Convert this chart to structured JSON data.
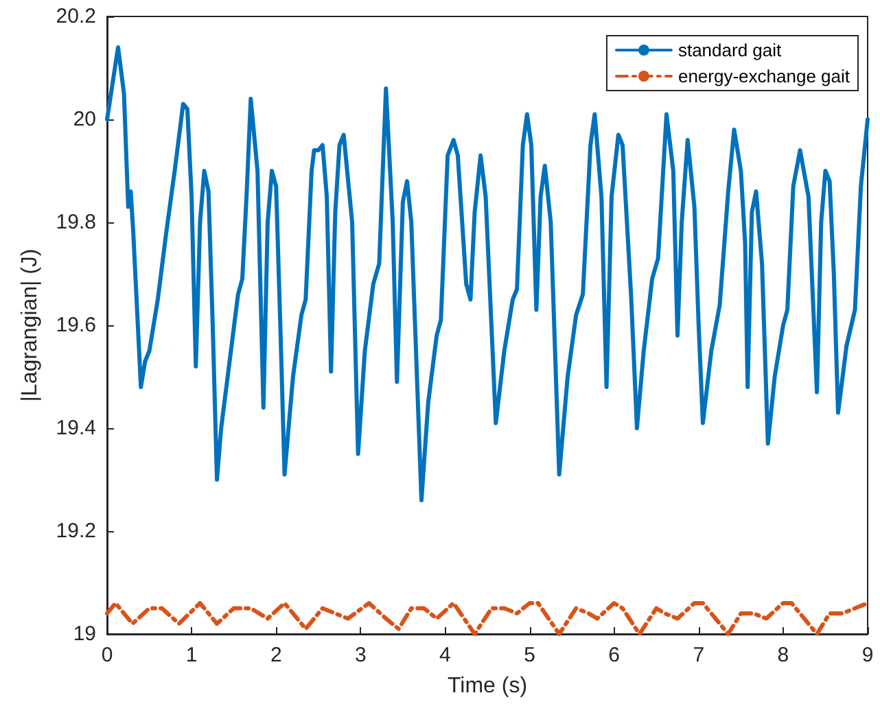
{
  "chart_data": {
    "type": "line",
    "xlabel": "Time (s)",
    "ylabel": "|Lagrangian| (J)",
    "xlim": [
      0,
      9
    ],
    "xticks": [
      0,
      1,
      2,
      3,
      4,
      5,
      6,
      7,
      8,
      9
    ],
    "ylim": [
      19,
      20.2
    ],
    "yticks": [
      19,
      19.2,
      19.4,
      19.6,
      19.8,
      20,
      20.2
    ],
    "grid": false,
    "legend": "top right",
    "marker": "none",
    "series": [
      {
        "name": "standard gait",
        "color": "#0072bd",
        "line_style": "solid",
        "x": [
          0,
          0.13,
          0.2,
          0.25,
          0.28,
          0.31,
          0.4,
          0.45,
          0.5,
          0.6,
          0.7,
          0.8,
          0.9,
          0.95,
          1.0,
          1.05,
          1.1,
          1.15,
          1.2,
          1.25,
          1.3,
          1.35,
          1.45,
          1.55,
          1.6,
          1.65,
          1.7,
          1.78,
          1.85,
          1.9,
          1.95,
          2.0,
          2.05,
          2.1,
          2.2,
          2.3,
          2.35,
          2.42,
          2.45,
          2.5,
          2.55,
          2.6,
          2.65,
          2.7,
          2.75,
          2.8,
          2.9,
          2.97,
          3.05,
          3.15,
          3.22,
          3.3,
          3.38,
          3.43,
          3.5,
          3.55,
          3.6,
          3.72,
          3.8,
          3.9,
          3.95,
          4.03,
          4.1,
          4.15,
          4.25,
          4.3,
          4.35,
          4.42,
          4.48,
          4.6,
          4.7,
          4.8,
          4.85,
          4.92,
          4.97,
          5.02,
          5.08,
          5.13,
          5.18,
          5.25,
          5.35,
          5.45,
          5.55,
          5.63,
          5.72,
          5.77,
          5.85,
          5.91,
          5.97,
          6.05,
          6.1,
          6.2,
          6.27,
          6.35,
          6.45,
          6.52,
          6.62,
          6.7,
          6.75,
          6.8,
          6.87,
          6.95,
          7.0,
          7.05,
          7.15,
          7.25,
          7.35,
          7.42,
          7.5,
          7.55,
          7.58,
          7.63,
          7.68,
          7.75,
          7.82,
          7.9,
          8.0,
          8.05,
          8.12,
          8.2,
          8.3,
          8.4,
          8.45,
          8.5,
          8.55,
          8.6,
          8.65,
          8.75,
          8.85,
          8.92,
          9.0
        ],
        "values": [
          20.0,
          20.14,
          20.05,
          19.83,
          19.86,
          19.78,
          19.48,
          19.53,
          19.55,
          19.65,
          19.78,
          19.9,
          20.03,
          20.02,
          19.85,
          19.52,
          19.8,
          19.9,
          19.86,
          19.6,
          19.3,
          19.4,
          19.53,
          19.66,
          19.69,
          19.85,
          20.04,
          19.9,
          19.44,
          19.8,
          19.9,
          19.87,
          19.6,
          19.31,
          19.5,
          19.62,
          19.65,
          19.9,
          19.94,
          19.94,
          19.95,
          19.85,
          19.51,
          19.82,
          19.95,
          19.97,
          19.8,
          19.35,
          19.55,
          19.68,
          19.72,
          20.06,
          19.8,
          19.49,
          19.84,
          19.88,
          19.8,
          19.26,
          19.45,
          19.58,
          19.61,
          19.93,
          19.96,
          19.93,
          19.68,
          19.65,
          19.82,
          19.93,
          19.85,
          19.41,
          19.55,
          19.65,
          19.67,
          19.95,
          20.01,
          19.95,
          19.63,
          19.85,
          19.91,
          19.8,
          19.31,
          19.5,
          19.62,
          19.66,
          19.95,
          20.01,
          19.85,
          19.48,
          19.85,
          19.97,
          19.95,
          19.66,
          19.4,
          19.55,
          19.69,
          19.73,
          20.01,
          19.9,
          19.58,
          19.8,
          19.96,
          19.83,
          19.6,
          19.41,
          19.55,
          19.64,
          19.86,
          19.98,
          19.9,
          19.76,
          19.48,
          19.82,
          19.86,
          19.72,
          19.37,
          19.5,
          19.6,
          19.63,
          19.87,
          19.94,
          19.85,
          19.47,
          19.8,
          19.9,
          19.88,
          19.7,
          19.43,
          19.56,
          19.63,
          19.87,
          20.0
        ]
      },
      {
        "name": "energy-exchange gait",
        "color": "#d95319",
        "line_style": "dashed",
        "x": [
          0,
          0.1,
          0.3,
          0.5,
          0.65,
          0.85,
          1.1,
          1.3,
          1.5,
          1.7,
          1.9,
          2.1,
          2.35,
          2.55,
          2.7,
          2.85,
          3.1,
          3.3,
          3.45,
          3.6,
          3.75,
          3.9,
          4.1,
          4.35,
          4.55,
          4.7,
          4.85,
          5.0,
          5.1,
          5.35,
          5.55,
          5.7,
          5.8,
          6.0,
          6.1,
          6.3,
          6.5,
          6.6,
          6.75,
          6.95,
          7.05,
          7.35,
          7.5,
          7.65,
          7.8,
          8.0,
          8.1,
          8.4,
          8.55,
          8.7,
          8.85,
          9.0
        ],
        "values": [
          19.04,
          19.06,
          19.02,
          19.05,
          19.05,
          19.02,
          19.06,
          19.02,
          19.05,
          19.05,
          19.03,
          19.06,
          19.01,
          19.05,
          19.04,
          19.03,
          19.06,
          19.03,
          19.01,
          19.05,
          19.05,
          19.03,
          19.06,
          19.0,
          19.05,
          19.05,
          19.04,
          19.06,
          19.06,
          19.0,
          19.05,
          19.04,
          19.03,
          19.06,
          19.05,
          19.0,
          19.05,
          19.04,
          19.03,
          19.06,
          19.06,
          19.0,
          19.04,
          19.04,
          19.03,
          19.06,
          19.06,
          19.0,
          19.04,
          19.04,
          19.05,
          19.06
        ]
      }
    ]
  }
}
